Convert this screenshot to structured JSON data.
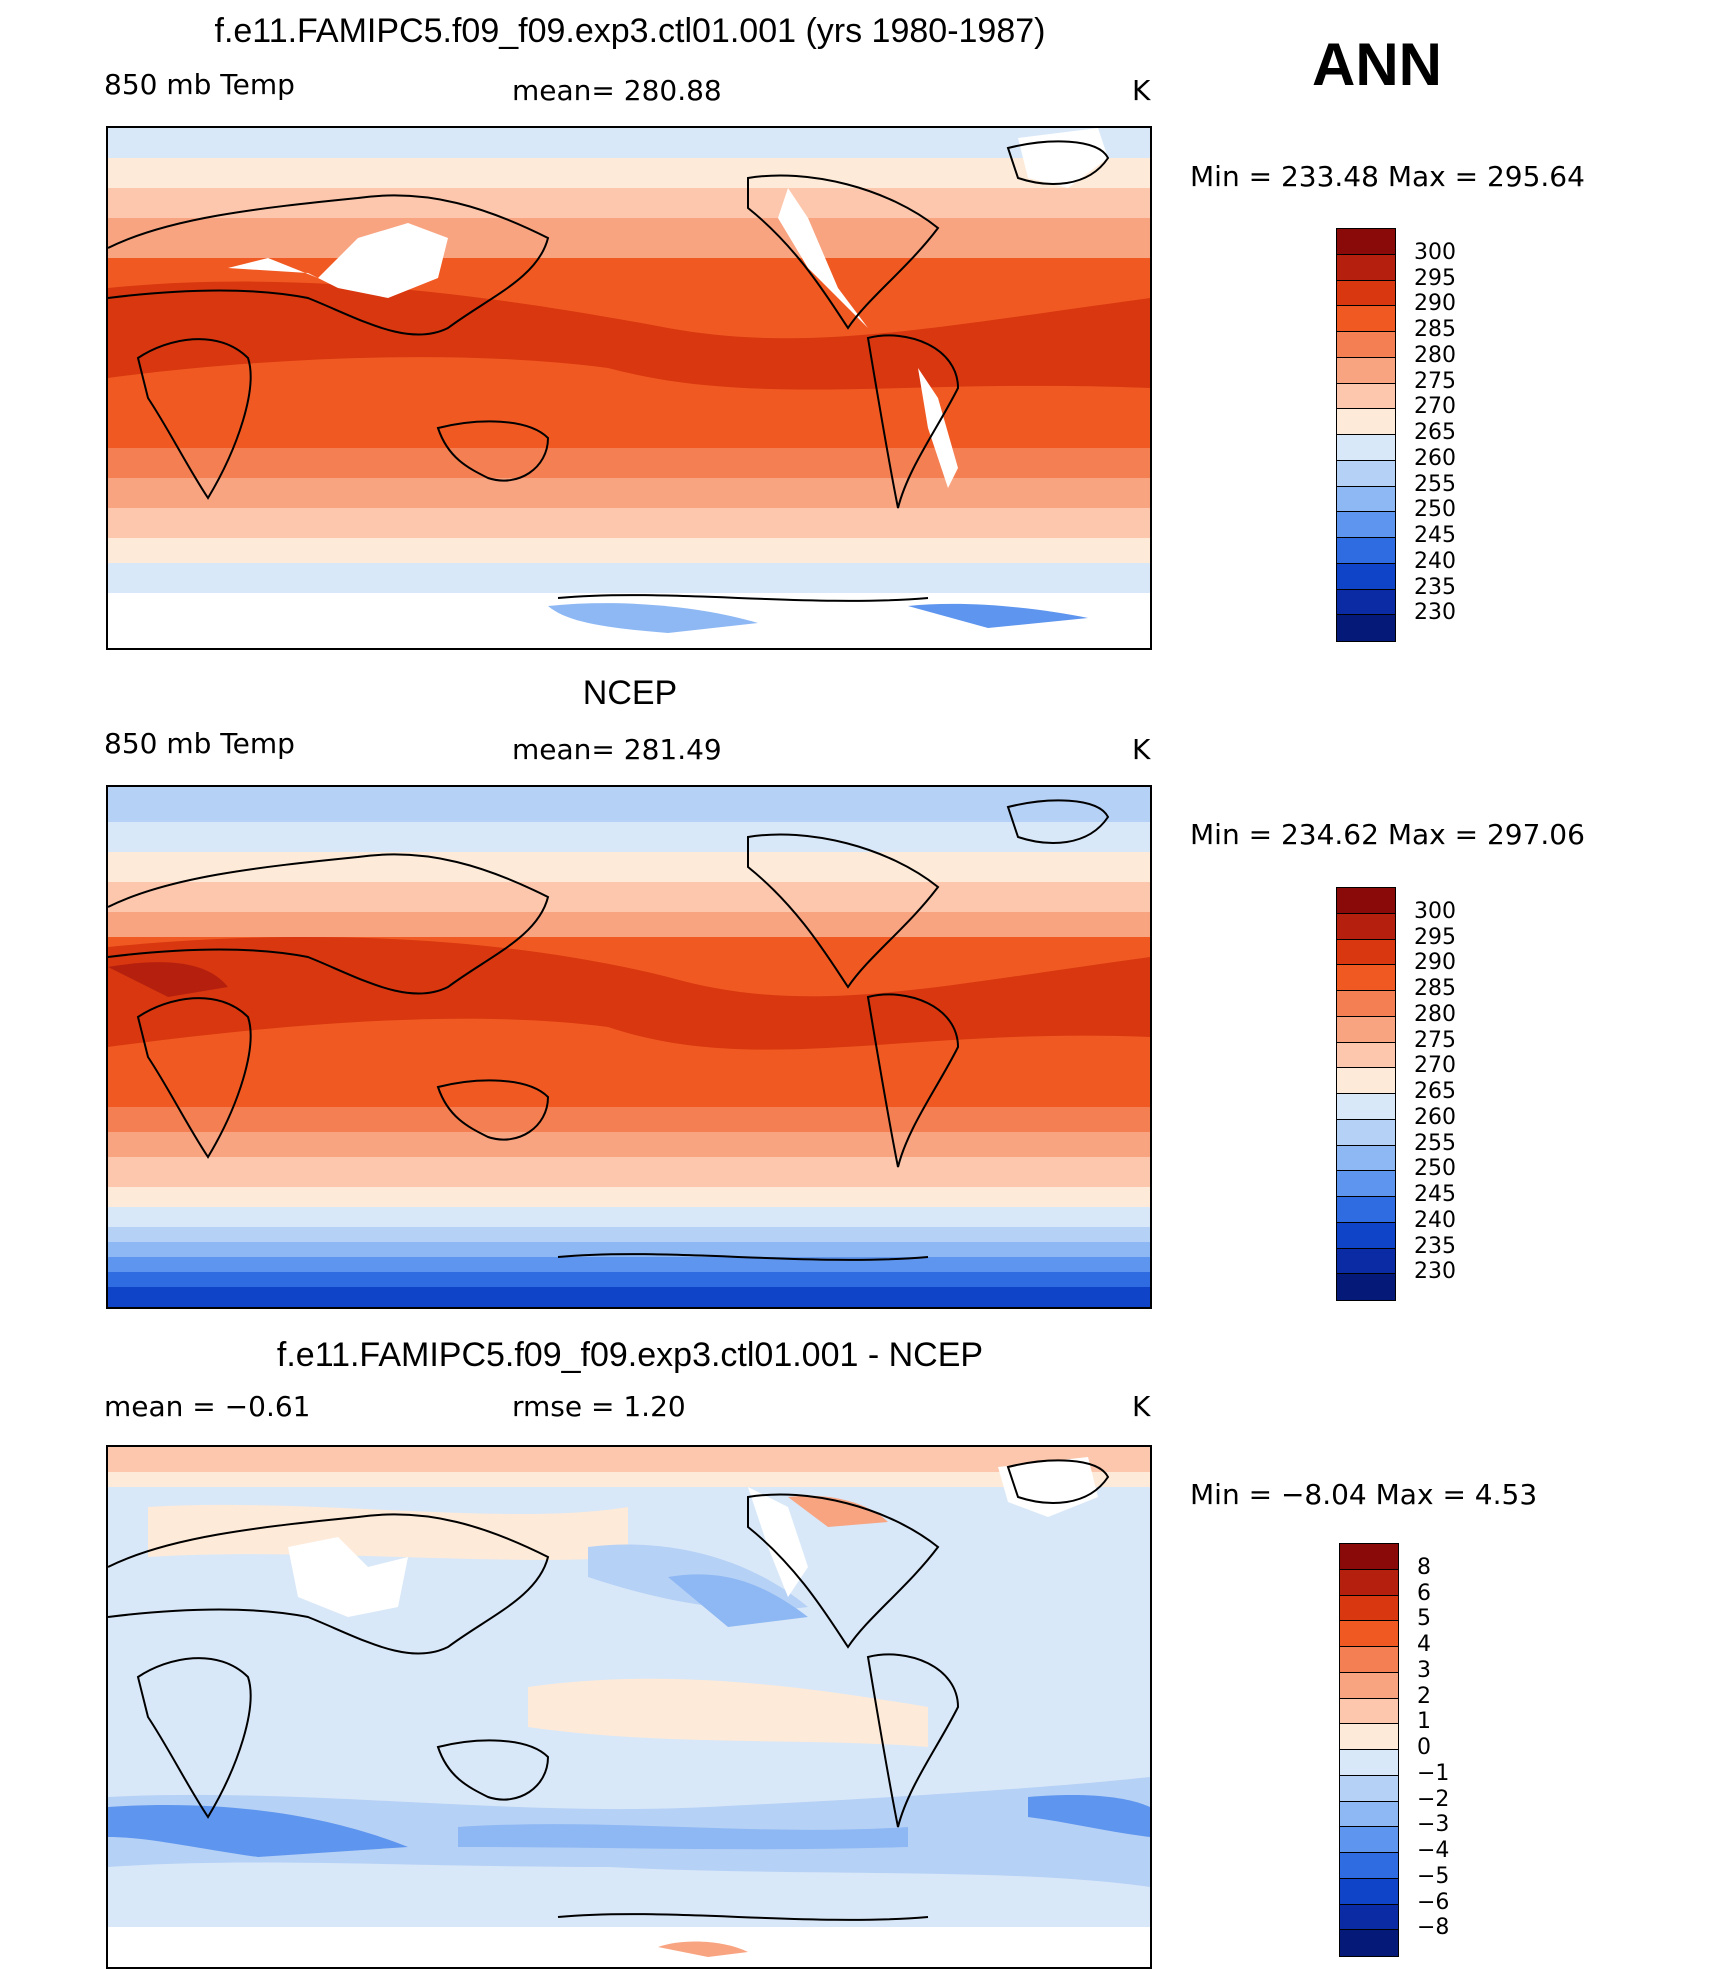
{
  "season": "ANN",
  "panels": [
    {
      "id": "model",
      "title": "f.e11.FAMIPC5.f09_f09.exp3.ctl01.001 (yrs 1980-1987)",
      "left_label": "850 mb Temp",
      "center_label": "mean=  280.88",
      "units": "K",
      "minmax": "Min  =  233.48  Max  =  295.64",
      "colorbar": {
        "labels": [
          "300",
          "295",
          "290",
          "285",
          "280",
          "275",
          "270",
          "265",
          "260",
          "255",
          "250",
          "245",
          "240",
          "235",
          "230"
        ],
        "colors": [
          "#8a0a0a",
          "#b5200e",
          "#d9370f",
          "#f05a22",
          "#f47f52",
          "#f8a481",
          "#fcc7ac",
          "#feead8",
          "#d9e8f8",
          "#b6d1f6",
          "#8db8f4",
          "#5e95ee",
          "#2f6ce2",
          "#0f44c8",
          "#0a2ba3",
          "#051a78"
        ]
      }
    },
    {
      "id": "obs",
      "title": "NCEP",
      "left_label": "850 mb Temp",
      "center_label": "mean=  281.49",
      "units": "K",
      "minmax": "Min  =  234.62  Max  =  297.06",
      "colorbar": {
        "labels": [
          "300",
          "295",
          "290",
          "285",
          "280",
          "275",
          "270",
          "265",
          "260",
          "255",
          "250",
          "245",
          "240",
          "235",
          "230"
        ],
        "colors": [
          "#8a0a0a",
          "#b5200e",
          "#d9370f",
          "#f05a22",
          "#f47f52",
          "#f8a481",
          "#fcc7ac",
          "#feead8",
          "#d9e8f8",
          "#b6d1f6",
          "#8db8f4",
          "#5e95ee",
          "#2f6ce2",
          "#0f44c8",
          "#0a2ba3",
          "#051a78"
        ]
      }
    },
    {
      "id": "diff",
      "title": "f.e11.FAMIPC5.f09_f09.exp3.ctl01.001 - NCEP",
      "left_label": "mean  =    −0.61",
      "center_label": "rmse  =     1.20",
      "units": "K",
      "minmax": "Min  =    −8.04  Max  =      4.53",
      "colorbar": {
        "labels": [
          "8",
          "6",
          "5",
          "4",
          "3",
          "2",
          "1",
          "0",
          "−1",
          "−2",
          "−3",
          "−4",
          "−5",
          "−6",
          "−8"
        ],
        "colors": [
          "#8a0a0a",
          "#b5200e",
          "#d9370f",
          "#f05a22",
          "#f47f52",
          "#f8a481",
          "#fcc7ac",
          "#feead8",
          "#d9e8f8",
          "#b6d1f6",
          "#8db8f4",
          "#5e95ee",
          "#2f6ce2",
          "#0f44c8",
          "#0a2ba3",
          "#051a78"
        ]
      }
    }
  ]
}
